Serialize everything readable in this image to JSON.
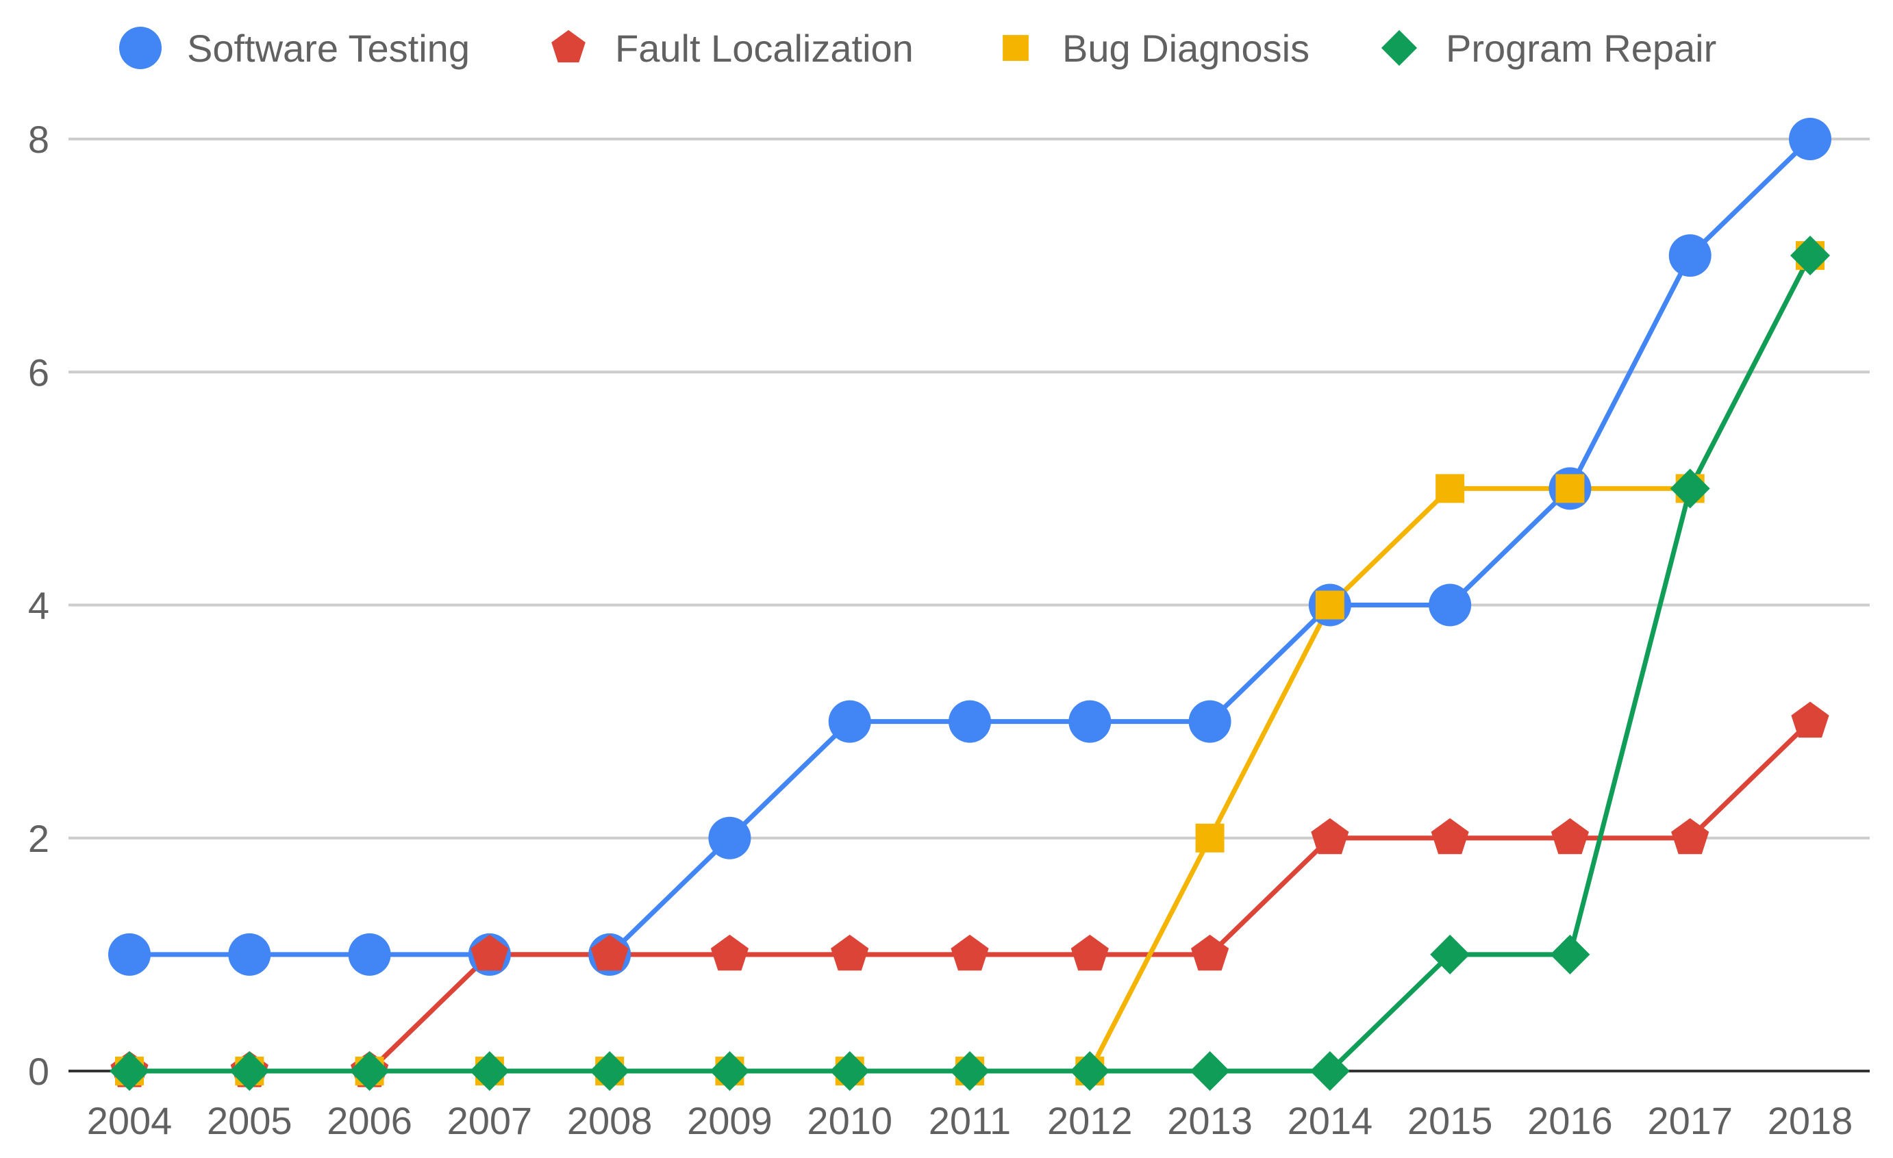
{
  "chart_data": {
    "type": "line",
    "x": [
      "2004",
      "2005",
      "2006",
      "2007",
      "2008",
      "2009",
      "2010",
      "2011",
      "2012",
      "2013",
      "2014",
      "2015",
      "2016",
      "2017",
      "2018"
    ],
    "ylim": [
      0,
      8
    ],
    "yticks": [
      0,
      2,
      4,
      6,
      8
    ],
    "grid": true,
    "legend_position": "top",
    "series": [
      {
        "name": "Software Testing",
        "marker": "circle",
        "color": "#4285F4",
        "values": [
          1,
          1,
          1,
          1,
          1,
          2,
          3,
          3,
          3,
          3,
          4,
          4,
          5,
          7,
          8
        ]
      },
      {
        "name": "Fault Localization",
        "marker": "pentagon",
        "color": "#DB4437",
        "values": [
          0,
          0,
          0,
          1,
          1,
          1,
          1,
          1,
          1,
          1,
          2,
          2,
          2,
          2,
          3
        ]
      },
      {
        "name": "Bug Diagnosis",
        "marker": "square",
        "color": "#F4B400",
        "values": [
          0,
          0,
          0,
          0,
          0,
          0,
          0,
          0,
          0,
          2,
          4,
          5,
          5,
          5,
          7
        ]
      },
      {
        "name": "Program Repair",
        "marker": "diamond",
        "color": "#0F9D58",
        "values": [
          0,
          0,
          0,
          0,
          0,
          0,
          0,
          0,
          0,
          0,
          0,
          1,
          1,
          5,
          7
        ]
      }
    ]
  }
}
